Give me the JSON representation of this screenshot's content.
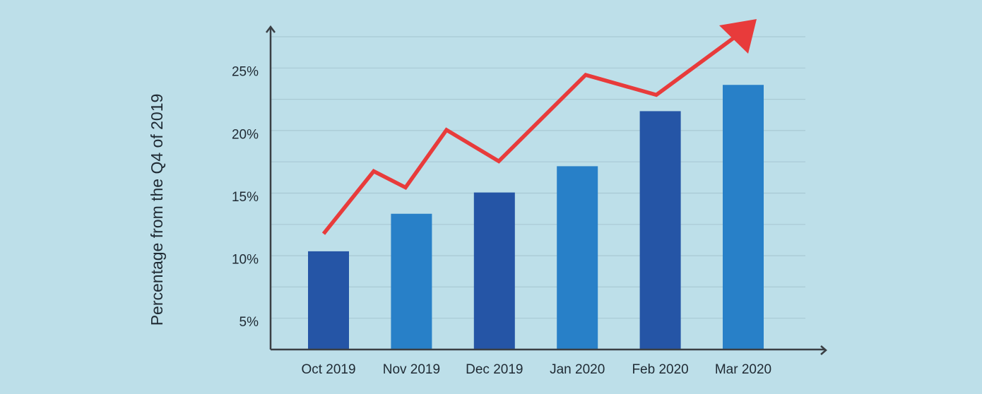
{
  "chart_data": {
    "type": "bar",
    "categories": [
      "Oct 2019",
      "Nov 2019",
      "Dec 2019",
      "Jan 2020",
      "Feb 2020",
      "Mar 2020"
    ],
    "values": [
      10.6,
      13.6,
      15.3,
      17.4,
      21.8,
      23.9
    ],
    "bar_colors": [
      "#2555a6",
      "#2880c8",
      "#2555a6",
      "#2880c8",
      "#2555a6",
      "#2880c8"
    ],
    "trend_line": {
      "color": "#e83b3b",
      "y": [
        12.0,
        17.0,
        15.7,
        20.3,
        17.8,
        24.7,
        23.1,
        27.8
      ]
    },
    "ylabel": "Percentage from the Q4 of 2019",
    "yticks": [
      5,
      10,
      15,
      20,
      25
    ],
    "ytick_labels": [
      "5%",
      "10%",
      "15%",
      "20%",
      "25%"
    ],
    "ylim": [
      2.75,
      27.75
    ],
    "grid": true,
    "grid_step": 2.5,
    "background": "#bddfe9",
    "axis_color": "#3a3f44",
    "grid_color": "#a9c9d4"
  }
}
